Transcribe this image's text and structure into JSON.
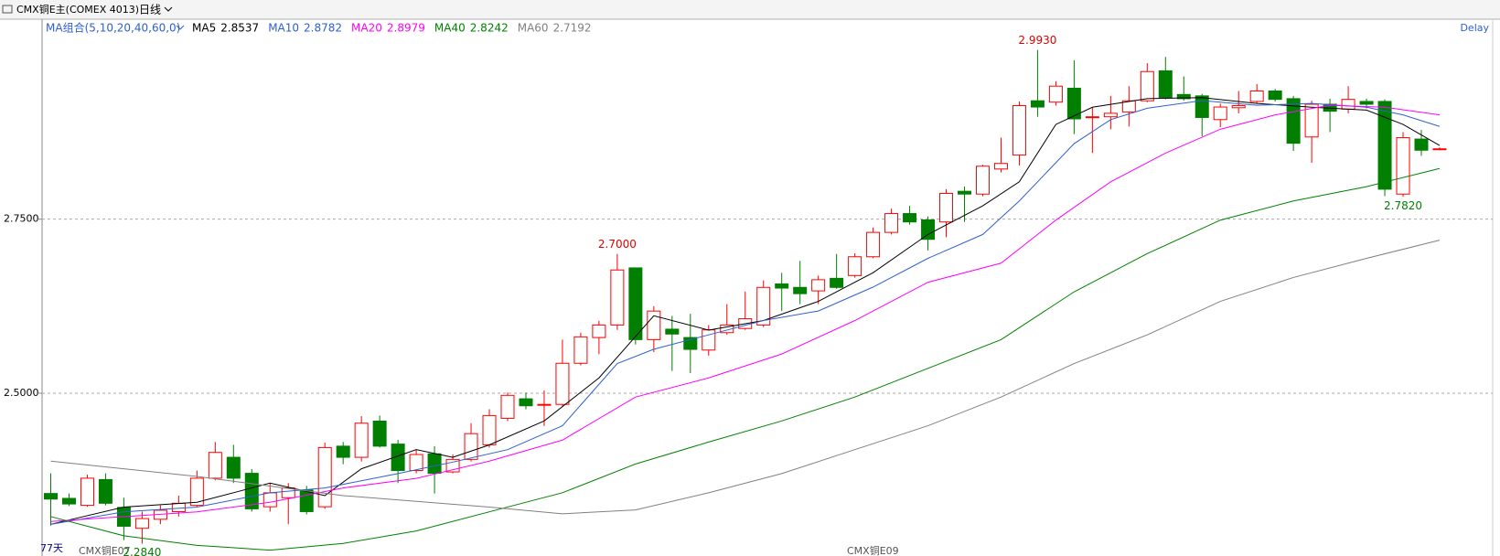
{
  "chart_data": {
    "type": "candlestick",
    "title": "CMX铜E主(COMEX 4013)",
    "period": "日线",
    "ma_group": "MA组合(5,10,20,40,60,0)",
    "status": "Delay",
    "day_count": "77天",
    "contract_labels": [
      "CMX铜E07",
      "CMX铜E09"
    ],
    "ylim": [
      2.2702,
      3.0345
    ],
    "yticks": [
      {
        "value": 2.5,
        "label": "2.5000"
      },
      {
        "value": 2.75,
        "label": "2.7500"
      }
    ],
    "up_color": "#ff0000",
    "down_color": "#007f00",
    "open": [
      2.356,
      2.349,
      2.339,
      2.376,
      2.336,
      2.306,
      2.319,
      2.33,
      2.339,
      2.378,
      2.408,
      2.385,
      2.337,
      2.35,
      2.361,
      2.337,
      2.424,
      2.408,
      2.46,
      2.427,
      2.389,
      2.413,
      2.387,
      2.405,
      2.426,
      2.464,
      2.492,
      2.483,
      2.484,
      2.543,
      2.58,
      2.598,
      2.68,
      2.577,
      2.592,
      2.58,
      2.562,
      2.587,
      2.593,
      2.598,
      2.657,
      2.652,
      2.647,
      2.665,
      2.669,
      2.696,
      2.731,
      2.758,
      2.749,
      2.746,
      2.79,
      2.786,
      2.822,
      2.842,
      2.92,
      2.918,
      2.938,
      2.896,
      2.897,
      2.904,
      2.92,
      2.963,
      2.929,
      2.927,
      2.893,
      2.91,
      2.919,
      2.934,
      2.923,
      2.868,
      2.915,
      2.908,
      2.919,
      2.919,
      2.786,
      2.865,
      2.85
    ],
    "high": [
      2.385,
      2.356,
      2.383,
      2.385,
      2.35,
      2.33,
      2.339,
      2.353,
      2.389,
      2.43,
      2.426,
      2.391,
      2.371,
      2.371,
      2.367,
      2.429,
      2.43,
      2.467,
      2.468,
      2.433,
      2.419,
      2.424,
      2.412,
      2.457,
      2.477,
      2.501,
      2.501,
      2.504,
      2.577,
      2.587,
      2.604,
      2.7,
      2.68,
      2.625,
      2.611,
      2.614,
      2.598,
      2.628,
      2.646,
      2.662,
      2.673,
      2.69,
      2.669,
      2.7,
      2.701,
      2.738,
      2.765,
      2.769,
      2.754,
      2.793,
      2.797,
      2.828,
      2.867,
      2.919,
      2.993,
      2.948,
      2.978,
      2.911,
      2.927,
      2.941,
      2.974,
      2.983,
      2.955,
      2.93,
      2.916,
      2.934,
      2.944,
      2.937,
      2.927,
      2.92,
      2.923,
      2.941,
      2.923,
      2.922,
      2.875,
      2.878,
      2.853
    ],
    "low": [
      2.31,
      2.338,
      2.337,
      2.339,
      2.289,
      2.284,
      2.312,
      2.323,
      2.337,
      2.375,
      2.371,
      2.33,
      2.33,
      2.312,
      2.326,
      2.334,
      2.398,
      2.402,
      2.422,
      2.371,
      2.385,
      2.356,
      2.385,
      2.402,
      2.422,
      2.46,
      2.477,
      2.453,
      2.481,
      2.54,
      2.556,
      2.591,
      2.57,
      2.559,
      2.532,
      2.529,
      2.554,
      2.584,
      2.591,
      2.595,
      2.618,
      2.628,
      2.628,
      2.65,
      2.666,
      2.694,
      2.728,
      2.742,
      2.705,
      2.724,
      2.746,
      2.783,
      2.817,
      2.827,
      2.897,
      2.913,
      2.872,
      2.845,
      2.879,
      2.883,
      2.918,
      2.922,
      2.92,
      2.869,
      2.882,
      2.902,
      2.916,
      2.919,
      2.848,
      2.831,
      2.875,
      2.902,
      2.909,
      2.783,
      2.782,
      2.841,
      2.849
    ],
    "close": [
      2.348,
      2.341,
      2.378,
      2.342,
      2.309,
      2.32,
      2.332,
      2.342,
      2.378,
      2.415,
      2.378,
      2.334,
      2.357,
      2.364,
      2.33,
      2.422,
      2.408,
      2.457,
      2.424,
      2.389,
      2.412,
      2.385,
      2.405,
      2.442,
      2.468,
      2.497,
      2.482,
      2.484,
      2.543,
      2.581,
      2.598,
      2.677,
      2.577,
      2.618,
      2.585,
      2.563,
      2.591,
      2.598,
      2.607,
      2.652,
      2.651,
      2.643,
      2.663,
      2.652,
      2.696,
      2.731,
      2.758,
      2.746,
      2.721,
      2.787,
      2.786,
      2.826,
      2.83,
      2.913,
      2.911,
      2.941,
      2.894,
      2.897,
      2.902,
      2.92,
      2.962,
      2.924,
      2.923,
      2.896,
      2.911,
      2.913,
      2.934,
      2.922,
      2.859,
      2.915,
      2.905,
      2.922,
      2.915,
      2.793,
      2.867,
      2.849,
      2.851
    ],
    "annotations": [
      {
        "index": 31,
        "value": 2.7,
        "label": "2.7000",
        "position": "above",
        "color": "#e00000"
      },
      {
        "index": 54,
        "value": 2.993,
        "label": "2.9930",
        "position": "above",
        "color": "#e00000"
      },
      {
        "index": 5,
        "value": 2.284,
        "label": "2.2840",
        "position": "below",
        "color": "#007f00"
      },
      {
        "index": 74,
        "value": 2.782,
        "label": "2.7820",
        "position": "below",
        "color": "#007f00"
      }
    ],
    "series": [
      {
        "name": "MA5",
        "last_value": 2.8537,
        "color": "#000000",
        "x": [
          0,
          4,
          8,
          10,
          12,
          15,
          17,
          20,
          22,
          24,
          27,
          30,
          33,
          36,
          39,
          42,
          45,
          48,
          51,
          53,
          55,
          57,
          60,
          63,
          66,
          69,
          72,
          74,
          76
        ],
        "values": [
          2.3118,
          2.3365,
          2.3434,
          2.3571,
          2.3709,
          2.353,
          2.3915,
          2.419,
          2.408,
          2.4258,
          2.4602,
          2.522,
          2.6113,
          2.5907,
          2.6044,
          2.6319,
          2.6731,
          2.728,
          2.7692,
          2.8036,
          2.886,
          2.9107,
          2.9231,
          2.9245,
          2.9162,
          2.9107,
          2.9066,
          2.886,
          2.8558
        ]
      },
      {
        "name": "MA10",
        "last_value": 2.8782,
        "color": "#2f5fd0",
        "x": [
          0,
          4,
          8,
          12,
          15,
          19,
          22,
          25,
          28,
          31,
          33,
          36,
          39,
          42,
          45,
          48,
          51,
          53,
          56,
          58,
          60,
          63,
          66,
          69,
          72,
          74,
          76
        ],
        "values": [
          2.3118,
          2.3297,
          2.3365,
          2.3571,
          2.364,
          2.3846,
          2.4011,
          2.419,
          2.4533,
          2.5426,
          2.5632,
          2.5838,
          2.6044,
          2.6181,
          2.6525,
          2.6937,
          2.728,
          2.7761,
          2.8585,
          2.8929,
          2.9093,
          2.9203,
          2.9135,
          2.9162,
          2.9107,
          2.8997,
          2.8832
        ]
      },
      {
        "name": "MA20",
        "last_value": 2.8979,
        "color": "#ff00ff",
        "x": [
          0,
          4,
          8,
          12,
          16,
          20,
          24,
          28,
          32,
          36,
          40,
          44,
          48,
          52,
          55,
          58,
          61,
          64,
          67,
          70,
          73,
          76
        ],
        "values": [
          2.3159,
          2.3228,
          2.3297,
          2.3434,
          2.364,
          2.3777,
          2.4025,
          2.4327,
          2.4945,
          2.522,
          2.5563,
          2.6044,
          2.6593,
          2.6868,
          2.7486,
          2.8036,
          2.8448,
          2.8791,
          2.8997,
          2.9135,
          2.9107,
          2.8997
        ]
      },
      {
        "name": "MA40",
        "last_value": 2.8242,
        "color": "#008000",
        "x": [
          0,
          4,
          8,
          12,
          16,
          20,
          24,
          28,
          32,
          36,
          40,
          44,
          48,
          52,
          56,
          60,
          64,
          68,
          72,
          76
        ],
        "values": [
          2.3228,
          2.2953,
          2.2816,
          2.2747,
          2.2843,
          2.3022,
          2.3297,
          2.3571,
          2.3984,
          2.4299,
          2.4602,
          2.4945,
          2.5357,
          2.5769,
          2.6456,
          2.7005,
          2.7486,
          2.7761,
          2.7967,
          2.8228
        ]
      },
      {
        "name": "MA60",
        "last_value": 2.7192,
        "color": "#808080",
        "x": [
          0,
          8,
          16,
          24,
          28,
          32,
          36,
          40,
          44,
          48,
          52,
          56,
          60,
          64,
          68,
          72,
          76
        ],
        "values": [
          2.4025,
          2.3805,
          2.353,
          2.3365,
          2.3269,
          2.3324,
          2.3571,
          2.3846,
          2.419,
          2.4533,
          2.4945,
          2.5426,
          2.5838,
          2.6319,
          2.6662,
          2.6937,
          2.7198
        ]
      }
    ]
  }
}
